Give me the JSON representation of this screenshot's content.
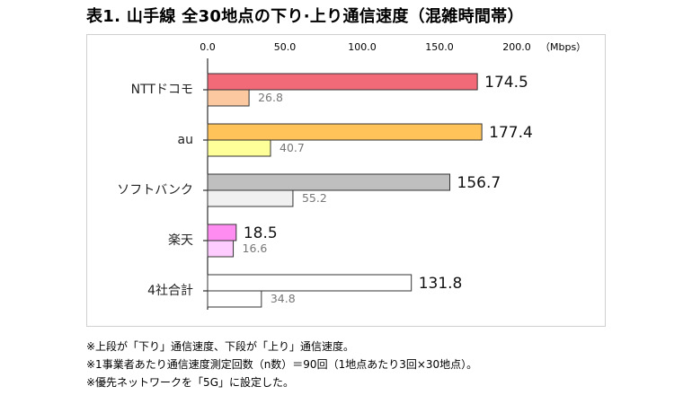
{
  "title": "表1. 山手線 全30地点の下り·上り通信速度（混雑時間帯）",
  "chart_data": {
    "type": "bar",
    "orientation": "horizontal",
    "categories": [
      "NTTドコモ",
      "au",
      "ソフトバンク",
      "楽天",
      "4社合計"
    ],
    "series": [
      {
        "name": "下り",
        "values": [
          174.5,
          177.4,
          156.7,
          18.5,
          131.8
        ]
      },
      {
        "name": "上り",
        "values": [
          26.8,
          40.7,
          55.2,
          16.6,
          34.8
        ]
      }
    ],
    "download_colors": [
      "#f26a78",
      "#ffc35a",
      "#bfbfbf",
      "#ff8cf0",
      "#ffffff"
    ],
    "upload_colors": [
      "#fbc8a0",
      "#ffff99",
      "#f0f0f0",
      "#ffccff",
      "#ffffff"
    ],
    "unit_label": "（Mbps）",
    "xlim": [
      0,
      200
    ],
    "ticks": [
      "0.0",
      "50.0",
      "100.0",
      "150.0",
      "200.0"
    ],
    "grid": false,
    "legend": "none"
  },
  "notes": [
    "※上段が「下り」通信速度、下段が「上り」通信速度。",
    "※1事業者あたり通信速度測定回数（n数）＝90回（1地点あたり3回×30地点）。",
    "※優先ネットワークを「5G」に設定した。"
  ]
}
